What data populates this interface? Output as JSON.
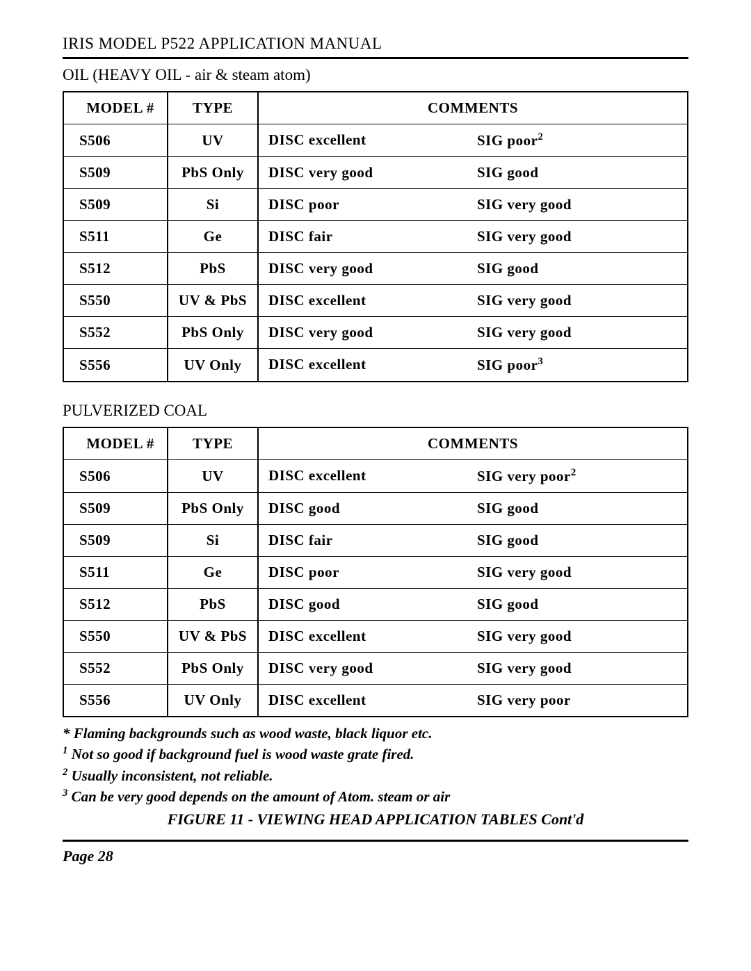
{
  "header": {
    "title": "IRIS MODEL P522 APPLICATION MANUAL"
  },
  "sections": [
    {
      "title": "OIL (HEAVY OIL - air & steam atom)",
      "table": {
        "headers": {
          "model": "MODEL #",
          "type": "TYPE",
          "comments": "COMMENTS"
        },
        "rows": [
          {
            "model": "S506",
            "type": "UV",
            "disc": "DISC excellent",
            "sig": "SIG poor",
            "sig_super": "2"
          },
          {
            "model": "S509",
            "type": "PbS Only",
            "disc": "DISC very good",
            "sig": "SIG good",
            "sig_super": ""
          },
          {
            "model": "S509",
            "type": "Si",
            "disc": "DISC poor",
            "sig": "SIG very good",
            "sig_super": ""
          },
          {
            "model": "S511",
            "type": "Ge",
            "disc": "DISC  fair",
            "sig": "SIG very good",
            "sig_super": ""
          },
          {
            "model": "S512",
            "type": "PbS",
            "disc": "DISC very good",
            "sig": "SIG good",
            "sig_super": ""
          },
          {
            "model": "S550",
            "type": "UV & PbS",
            "disc": "DISC excellent",
            "sig": "SIG very good",
            "sig_super": ""
          },
          {
            "model": "S552",
            "type": "PbS Only",
            "disc": "DISC very good",
            "sig": "SIG very good",
            "sig_super": ""
          },
          {
            "model": "S556",
            "type": "UV Only",
            "disc": "DISC excellent",
            "sig": "SIG poor",
            "sig_super": "3"
          }
        ]
      }
    },
    {
      "title": "PULVERIZED COAL",
      "table": {
        "headers": {
          "model": "MODEL #",
          "type": "TYPE",
          "comments": "COMMENTS"
        },
        "rows": [
          {
            "model": "S506",
            "type": "UV",
            "disc": "DISC excellent",
            "sig": "SIG very poor",
            "sig_super": "2"
          },
          {
            "model": "S509",
            "type": "PbS Only",
            "disc": "DISC good",
            "sig": "SIG good",
            "sig_super": ""
          },
          {
            "model": "S509",
            "type": "Si",
            "disc": "DISC fair",
            "sig": "SIG good",
            "sig_super": ""
          },
          {
            "model": "S511",
            "type": "Ge",
            "disc": "DISC  poor",
            "sig": "SIG very good",
            "sig_super": ""
          },
          {
            "model": "S512",
            "type": "PbS",
            "disc": "DISC good",
            "sig": "SIG good",
            "sig_super": ""
          },
          {
            "model": "S550",
            "type": "UV & PbS",
            "disc": "DISC excellent",
            "sig": "SIG very good",
            "sig_super": ""
          },
          {
            "model": "S552",
            "type": "PbS Only",
            "disc": "DISC very good",
            "sig": "SIG very good",
            "sig_super": ""
          },
          {
            "model": "S556",
            "type": "UV Only",
            "disc": "DISC excellent",
            "sig": "SIG very poor",
            "sig_super": ""
          }
        ]
      }
    }
  ],
  "footnotes": [
    {
      "marker": "*",
      "text": "Flaming backgrounds such as wood waste, black liquor etc."
    },
    {
      "marker": "1",
      "text": "Not so good if background fuel is wood waste grate fired."
    },
    {
      "marker": "2",
      "text": "Usually inconsistent, not reliable."
    },
    {
      "marker": "3",
      "text": "Can be very good depends on the amount of Atom. steam or air"
    }
  ],
  "figure_caption": "FIGURE 11 - VIEWING HEAD APPLICATION TABLES Cont'd",
  "footer": {
    "page_label": "Page 28"
  }
}
